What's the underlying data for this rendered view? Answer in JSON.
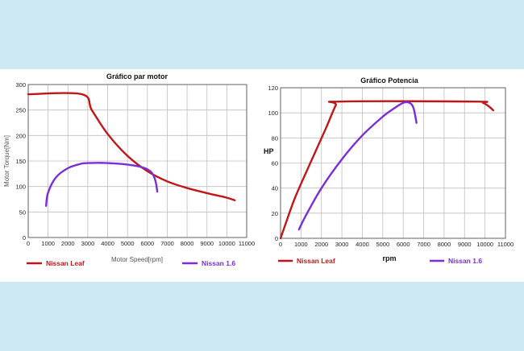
{
  "colors": {
    "background": "#cde9f3",
    "panel": "#ffffff",
    "grid": "#bfbfbf",
    "leaf": "#c0161a",
    "nissan16": "#7a2ed6"
  },
  "chart_data": [
    {
      "type": "line",
      "title": "Gráfico par motor",
      "xlabel": "Motor Speed[rpm]",
      "ylabel": "Motor Torque[Nm]",
      "xlim": [
        0,
        11000
      ],
      "ylim": [
        0,
        300
      ],
      "xticks": [
        0,
        1000,
        2000,
        3000,
        4000,
        5000,
        6000,
        7000,
        8000,
        9000,
        10000,
        11000
      ],
      "yticks": [
        0,
        50,
        100,
        150,
        200,
        250,
        300
      ],
      "grid": true,
      "legend_position": "bottom",
      "series": [
        {
          "name": "Nissan Leaf",
          "color": "#c0161a",
          "points": [
            [
              0,
              281
            ],
            [
              2700,
              281
            ],
            [
              3200,
              250
            ],
            [
              4000,
              203
            ],
            [
              5000,
              160
            ],
            [
              6000,
              130
            ],
            [
              7000,
              110
            ],
            [
              8000,
              97
            ],
            [
              9000,
              87
            ],
            [
              10000,
              78
            ],
            [
              10400,
              73
            ]
          ]
        },
        {
          "name": "Nissan 1.6",
          "color": "#7a2ed6",
          "points": [
            [
              900,
              62
            ],
            [
              1000,
              88
            ],
            [
              1400,
              118
            ],
            [
              2000,
              136
            ],
            [
              2600,
              144
            ],
            [
              3000,
              146
            ],
            [
              4000,
              146
            ],
            [
              5000,
              143
            ],
            [
              5800,
              137
            ],
            [
              6200,
              128
            ],
            [
              6400,
              112
            ],
            [
              6500,
              90
            ]
          ]
        }
      ]
    },
    {
      "type": "line",
      "title": "Gráfico Potencia",
      "xlabel": "rpm",
      "ylabel": "HP",
      "xlim": [
        0,
        11000
      ],
      "ylim": [
        0,
        120
      ],
      "xticks": [
        0,
        1000,
        2000,
        3000,
        4000,
        5000,
        6000,
        7000,
        8000,
        9000,
        10000,
        11000
      ],
      "yticks": [
        0,
        20,
        40,
        60,
        80,
        100,
        120
      ],
      "grid": true,
      "legend_position": "bottom",
      "series": [
        {
          "name": "Nissan Leaf",
          "color": "#c0161a",
          "points": [
            [
              0,
              0
            ],
            [
              300,
              14
            ],
            [
              700,
              32
            ],
            [
              1400,
              58
            ],
            [
              2200,
              87
            ],
            [
              2700,
              106
            ],
            [
              2900,
              109
            ],
            [
              9500,
              109
            ],
            [
              9900,
              108
            ],
            [
              10200,
              105
            ],
            [
              10400,
              102
            ]
          ]
        },
        {
          "name": "Nissan 1.6",
          "color": "#7a2ed6",
          "points": [
            [
              900,
              7
            ],
            [
              1200,
              17
            ],
            [
              2000,
              40
            ],
            [
              3000,
              63
            ],
            [
              4000,
              82
            ],
            [
              5000,
              97
            ],
            [
              5500,
              103
            ],
            [
              6000,
              108
            ],
            [
              6300,
              108
            ],
            [
              6500,
              104
            ],
            [
              6650,
              92
            ]
          ]
        }
      ]
    }
  ]
}
